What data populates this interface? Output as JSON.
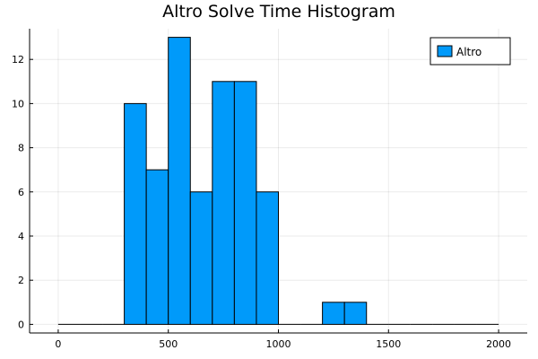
{
  "chart_data": {
    "type": "bar",
    "title": "Altro Solve Time Histogram",
    "xlabel": "",
    "ylabel": "",
    "xlim": [
      -130,
      2130
    ],
    "ylim": [
      -0.39,
      13.39
    ],
    "x_ticks": [
      0,
      500,
      1000,
      1500,
      2000
    ],
    "y_ticks": [
      0,
      2,
      4,
      6,
      8,
      10,
      12
    ],
    "grid": true,
    "legend_position": "top-right",
    "bin_edges": [
      0,
      100,
      200,
      300,
      400,
      500,
      600,
      700,
      800,
      900,
      1000,
      1100,
      1200,
      1300,
      1400,
      1500,
      1600,
      1700,
      1800,
      1900,
      2000
    ],
    "series": [
      {
        "name": "Altro",
        "color": "#009AFA",
        "values": [
          0,
          0,
          0,
          10,
          7,
          13,
          6,
          11,
          11,
          6,
          0,
          0,
          1,
          1,
          0,
          0,
          0,
          0,
          0,
          0
        ]
      }
    ]
  }
}
